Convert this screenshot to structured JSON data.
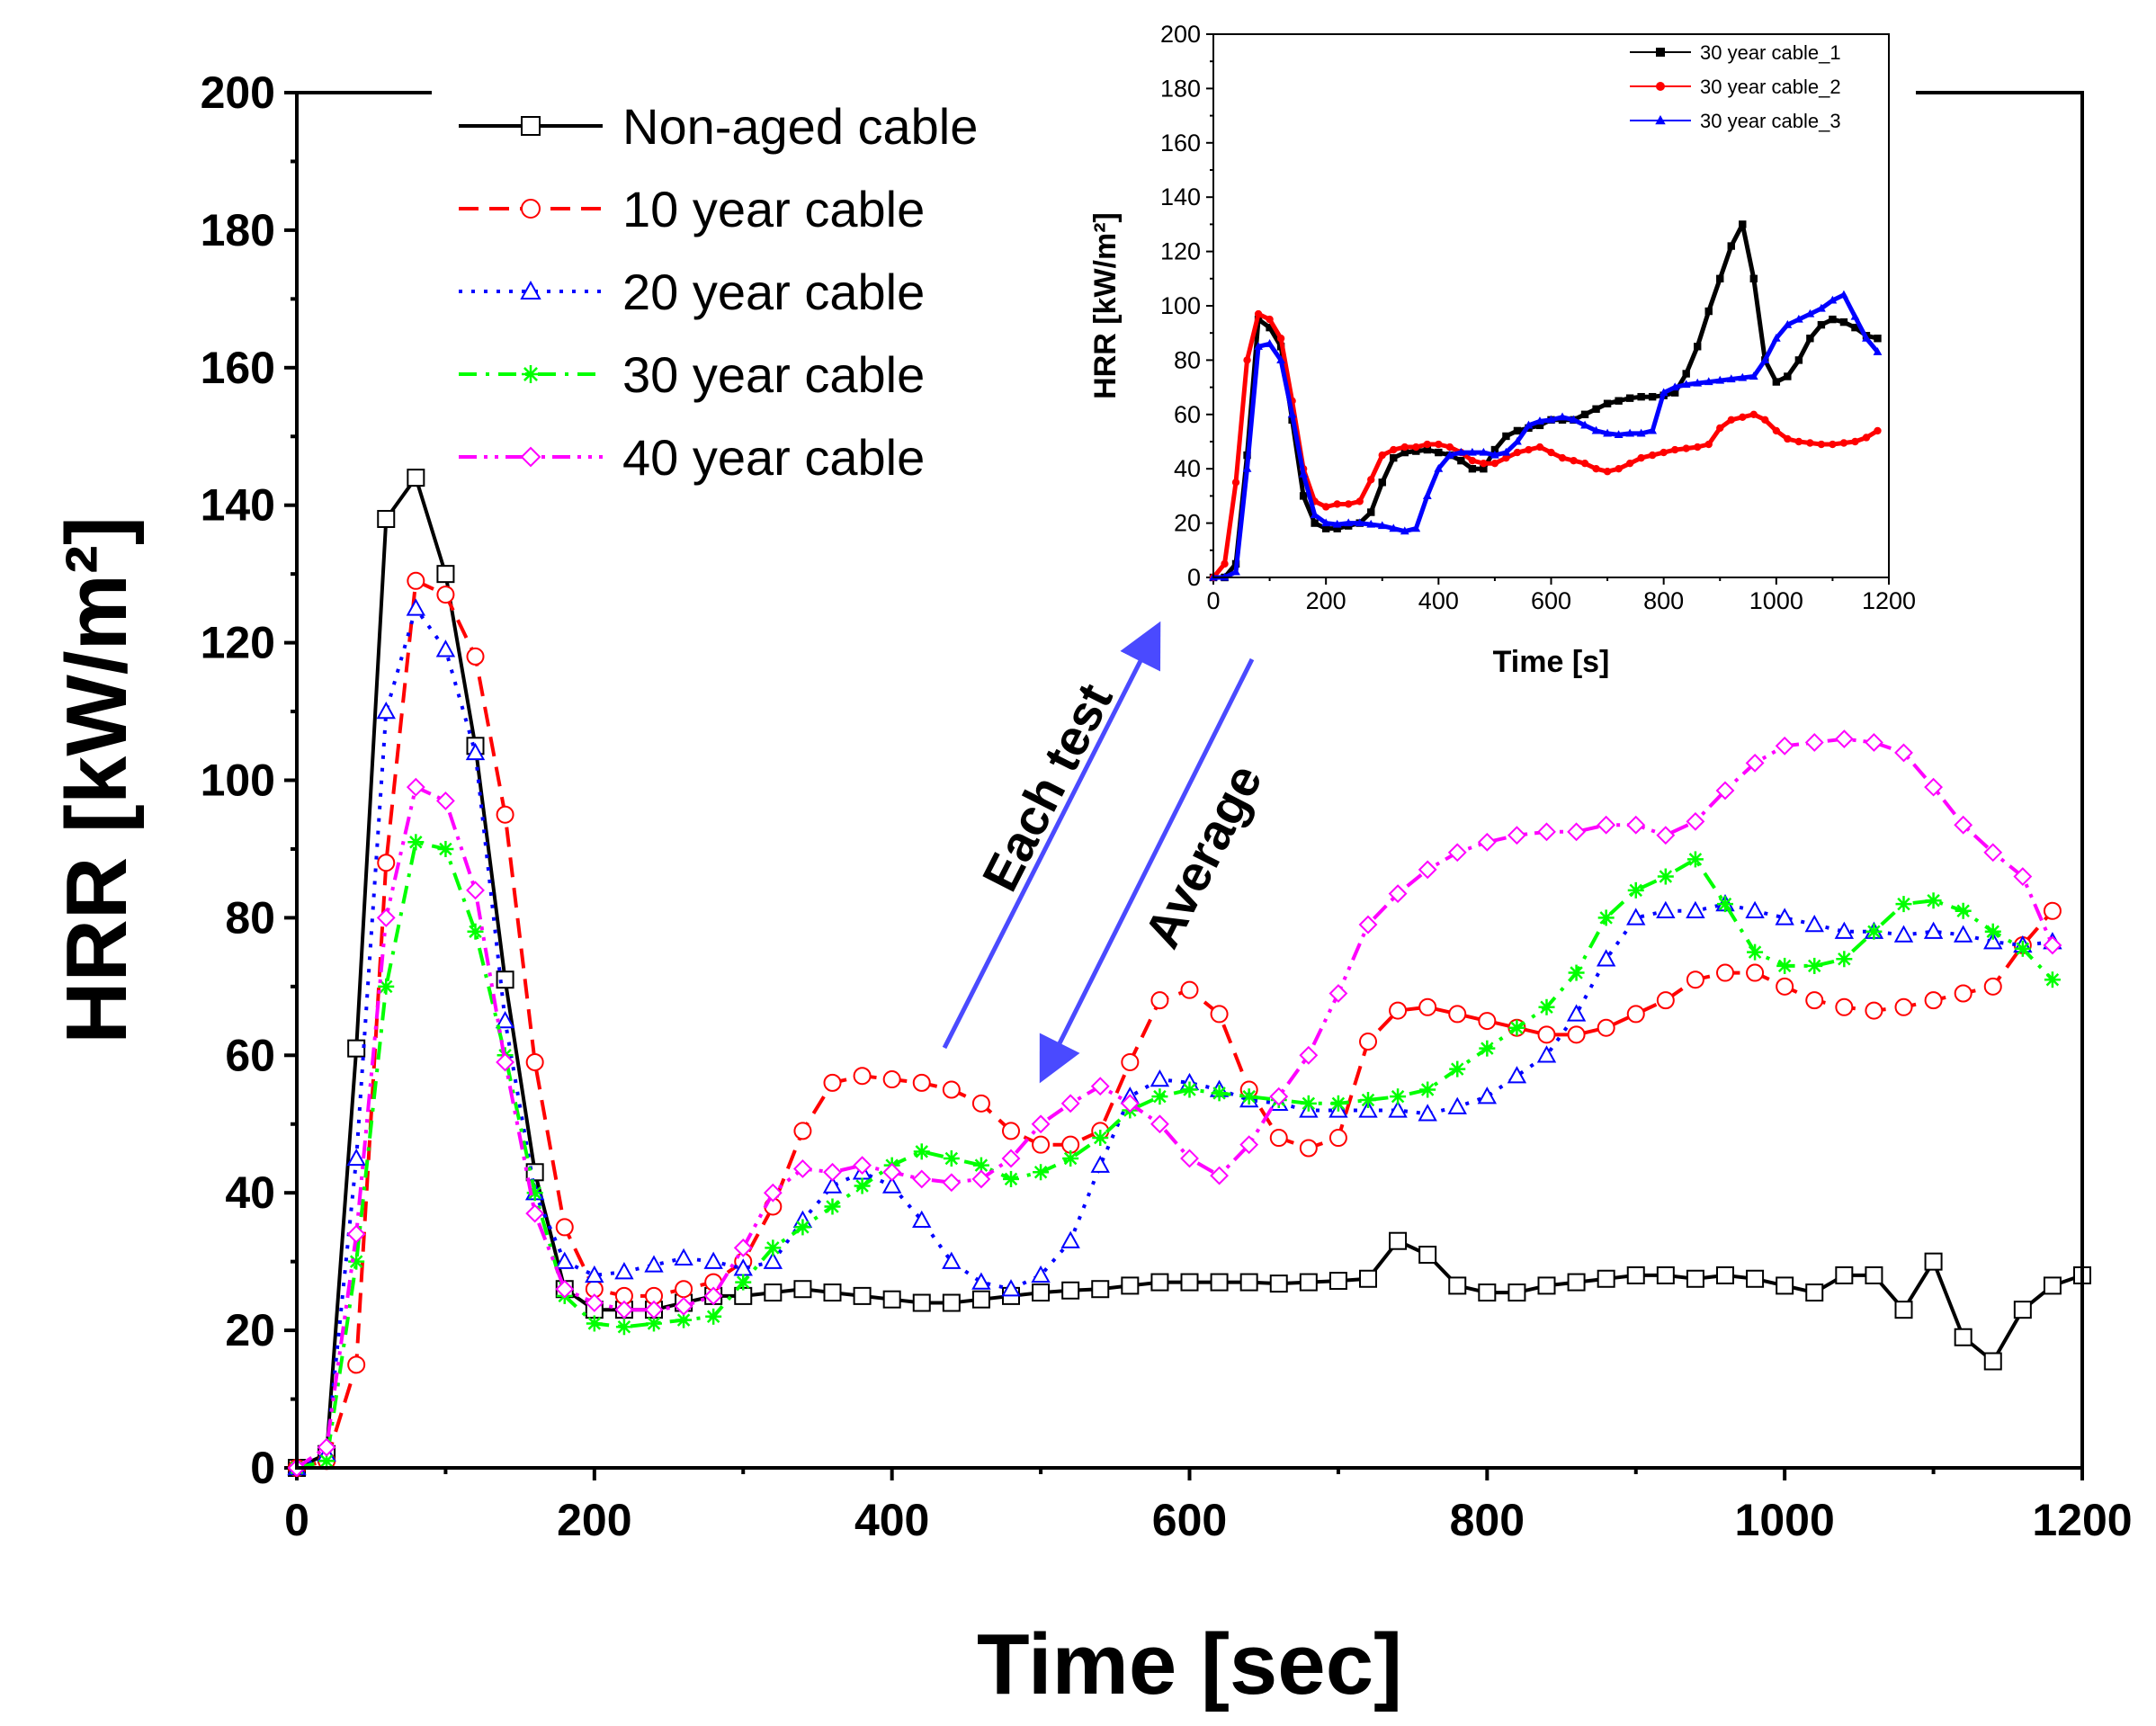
{
  "chart_data": [
    {
      "type": "line",
      "xlabel": "Time [sec]",
      "ylabel": "HRR [kW/m²]",
      "xlim": [
        0,
        1200
      ],
      "ylim": [
        0,
        200
      ],
      "xticks": [
        "0",
        "200",
        "400",
        "600",
        "800",
        "1000",
        "1200"
      ],
      "yticks": [
        "0",
        "20",
        "40",
        "60",
        "80",
        "100",
        "120",
        "140",
        "160",
        "180",
        "200"
      ],
      "legend_position": "top-left",
      "series": [
        {
          "name": "Non-aged cable",
          "color": "#000000",
          "marker": "square",
          "dash": "solid",
          "x": [
            0,
            20,
            40,
            60,
            80,
            100,
            120,
            140,
            160,
            180,
            200,
            220,
            240,
            260,
            280,
            300,
            320,
            340,
            360,
            380,
            400,
            420,
            440,
            460,
            480,
            500,
            520,
            540,
            560,
            580,
            600,
            620,
            640,
            660,
            680,
            700,
            720,
            740,
            760,
            780,
            800,
            820,
            840,
            860,
            880,
            900,
            920,
            940,
            960,
            980,
            1000,
            1020,
            1040,
            1060,
            1080,
            1100,
            1120,
            1140,
            1160,
            1180,
            1200
          ],
          "y": [
            0,
            2,
            61,
            138,
            144,
            130,
            105,
            71,
            43,
            26,
            23,
            23,
            23,
            24,
            25,
            25,
            25.5,
            26,
            25.5,
            25,
            24.5,
            24,
            24,
            24.5,
            25,
            25.5,
            25.8,
            26,
            26.5,
            27,
            27,
            27,
            27,
            26.8,
            27,
            27.2,
            27.5,
            33,
            31,
            26.5,
            25.5,
            25.5,
            26.5,
            27,
            27.5,
            28,
            28,
            27.5,
            28,
            27.5,
            26.5,
            25.5,
            28,
            28,
            23,
            30,
            19,
            15.5,
            23,
            26.5,
            28
          ]
        },
        {
          "name": "10 year cable",
          "color": "#ff0000",
          "marker": "circle",
          "dash": "dashed",
          "x": [
            0,
            20,
            40,
            60,
            80,
            100,
            120,
            140,
            160,
            180,
            200,
            220,
            240,
            260,
            280,
            300,
            320,
            340,
            360,
            380,
            400,
            420,
            440,
            460,
            480,
            500,
            520,
            540,
            560,
            580,
            600,
            620,
            640,
            660,
            680,
            700,
            720,
            740,
            760,
            780,
            800,
            820,
            840,
            860,
            880,
            900,
            920,
            940,
            960,
            980,
            1000,
            1020,
            1040,
            1060,
            1080,
            1100,
            1120,
            1140,
            1160,
            1180
          ],
          "y": [
            0,
            1,
            15,
            88,
            129,
            127,
            118,
            95,
            59,
            35,
            26,
            25,
            25,
            26,
            27,
            30,
            38,
            49,
            56,
            57,
            56.5,
            56,
            55,
            53,
            49,
            47,
            47,
            49,
            59,
            68,
            69.5,
            66,
            55,
            48,
            46.5,
            48,
            62,
            66.5,
            67,
            66,
            65,
            64,
            63,
            63,
            64,
            66,
            68,
            71,
            72,
            72,
            70,
            68,
            67,
            66.5,
            67,
            68,
            69,
            70,
            76,
            81
          ]
        },
        {
          "name": "20 year cable",
          "color": "#0000ff",
          "marker": "triangle",
          "dash": "dotted",
          "x": [
            0,
            20,
            40,
            60,
            80,
            100,
            120,
            140,
            160,
            180,
            200,
            220,
            240,
            260,
            280,
            300,
            320,
            340,
            360,
            380,
            400,
            420,
            440,
            460,
            480,
            500,
            520,
            540,
            560,
            580,
            600,
            620,
            640,
            660,
            680,
            700,
            720,
            740,
            760,
            780,
            800,
            820,
            840,
            860,
            880,
            900,
            920,
            940,
            960,
            980,
            1000,
            1020,
            1040,
            1060,
            1080,
            1100,
            1120,
            1140,
            1160,
            1180
          ],
          "y": [
            0,
            2,
            45,
            110,
            125,
            119,
            104,
            65,
            40,
            30,
            28,
            28.5,
            29.5,
            30.5,
            30,
            29,
            30,
            36,
            41,
            43,
            41,
            36,
            30,
            27,
            26,
            28,
            33,
            44,
            54,
            56.5,
            56,
            55,
            53.5,
            53,
            52,
            52,
            52,
            52,
            51.5,
            52.5,
            54,
            57,
            60,
            66,
            74,
            80,
            81,
            81,
            82,
            81,
            80,
            79,
            78,
            78,
            77.5,
            78,
            77.5,
            76.5,
            76,
            76.5
          ]
        },
        {
          "name": "30 year cable",
          "color": "#00ff00",
          "marker": "asterisk",
          "dash": "dashdot",
          "x": [
            0,
            20,
            40,
            60,
            80,
            100,
            120,
            140,
            160,
            180,
            200,
            220,
            240,
            260,
            280,
            300,
            320,
            340,
            360,
            380,
            400,
            420,
            440,
            460,
            480,
            500,
            520,
            540,
            560,
            580,
            600,
            620,
            640,
            660,
            680,
            700,
            720,
            740,
            760,
            780,
            800,
            820,
            840,
            860,
            880,
            900,
            920,
            940,
            960,
            980,
            1000,
            1020,
            1040,
            1060,
            1080,
            1100,
            1120,
            1140,
            1160,
            1180
          ],
          "y": [
            0,
            1,
            30,
            70,
            91,
            90,
            78,
            60,
            40,
            25,
            21,
            20.5,
            21,
            21.5,
            22,
            27,
            32,
            35,
            38,
            41,
            44,
            46,
            45,
            44,
            42,
            43,
            45,
            48,
            52,
            54,
            55,
            54.5,
            54,
            53.5,
            53,
            53,
            53.5,
            54,
            55,
            58,
            61,
            64,
            67,
            72,
            80,
            84,
            86,
            88.5,
            82,
            75,
            73,
            73,
            74,
            78,
            82,
            82.5,
            81,
            78,
            75.5,
            71
          ]
        },
        {
          "name": "40 year cable",
          "color": "#ff00ff",
          "marker": "diamond",
          "dash": "dashdotdot",
          "x": [
            0,
            20,
            40,
            60,
            80,
            100,
            120,
            140,
            160,
            180,
            200,
            220,
            240,
            260,
            280,
            300,
            320,
            340,
            360,
            380,
            400,
            420,
            440,
            460,
            480,
            500,
            520,
            540,
            560,
            580,
            600,
            620,
            640,
            660,
            680,
            700,
            720,
            740,
            760,
            780,
            800,
            820,
            840,
            860,
            880,
            900,
            920,
            940,
            960,
            980,
            1000,
            1020,
            1040,
            1060,
            1080,
            1100,
            1120,
            1140,
            1160,
            1180
          ],
          "y": [
            0,
            3,
            34,
            80,
            99,
            97,
            84,
            59,
            37,
            26,
            24,
            23,
            23,
            23.5,
            25,
            32,
            40,
            43.5,
            43,
            44,
            43,
            42,
            41.5,
            42,
            45,
            50,
            53,
            55.5,
            53,
            50,
            45,
            42.5,
            47,
            54,
            60,
            69,
            79,
            83.5,
            87,
            89.5,
            91,
            92,
            92.5,
            92.5,
            93.5,
            93.5,
            92,
            94,
            98.5,
            102.5,
            105,
            105.5,
            106,
            105.5,
            104,
            99,
            93.5,
            89.5,
            86,
            76
          ]
        }
      ]
    },
    {
      "type": "line",
      "title": "",
      "xlabel": "Time [s]",
      "ylabel": "HRR [kW/m²]",
      "xlim": [
        0,
        1200
      ],
      "ylim": [
        0,
        200
      ],
      "xticks": [
        "0",
        "200",
        "400",
        "600",
        "800",
        "1000",
        "1200"
      ],
      "yticks": [
        "0",
        "20",
        "40",
        "60",
        "80",
        "100",
        "120",
        "140",
        "160",
        "180",
        "200"
      ],
      "legend_position": "top-right",
      "series": [
        {
          "name": "30 year cable_1",
          "color": "#000000",
          "marker": "square",
          "x": [
            0,
            20,
            40,
            60,
            80,
            100,
            120,
            140,
            160,
            180,
            200,
            220,
            240,
            260,
            280,
            300,
            320,
            340,
            360,
            380,
            400,
            420,
            440,
            460,
            480,
            500,
            520,
            540,
            560,
            580,
            600,
            620,
            640,
            660,
            680,
            700,
            720,
            740,
            760,
            780,
            800,
            820,
            840,
            860,
            880,
            900,
            920,
            940,
            960,
            980,
            1000,
            1020,
            1040,
            1060,
            1080,
            1100,
            1120,
            1140,
            1160,
            1180
          ],
          "y": [
            0,
            0,
            5,
            45,
            95,
            92,
            85,
            58,
            30,
            20,
            18,
            18,
            19,
            20,
            24,
            35,
            44,
            46,
            46.5,
            47,
            46,
            45,
            43,
            40,
            40,
            47,
            52,
            54,
            55,
            56,
            58,
            58,
            58,
            60,
            62,
            64,
            65,
            66,
            66.5,
            66.5,
            67,
            68,
            75,
            85,
            98,
            110,
            122,
            130,
            110,
            80,
            72,
            74,
            80,
            88,
            93,
            95,
            94,
            92,
            89,
            88
          ]
        },
        {
          "name": "30 year cable_2",
          "color": "#ff0000",
          "marker": "circle",
          "x": [
            0,
            20,
            40,
            60,
            80,
            100,
            120,
            140,
            160,
            180,
            200,
            220,
            240,
            260,
            280,
            300,
            320,
            340,
            360,
            380,
            400,
            420,
            440,
            460,
            480,
            500,
            520,
            540,
            560,
            580,
            600,
            620,
            640,
            660,
            680,
            700,
            720,
            740,
            760,
            780,
            800,
            820,
            840,
            860,
            880,
            900,
            920,
            940,
            960,
            980,
            1000,
            1020,
            1040,
            1060,
            1080,
            1100,
            1120,
            1140,
            1160,
            1180
          ],
          "y": [
            0,
            5,
            35,
            80,
            97,
            95,
            88,
            65,
            40,
            28,
            26,
            27,
            27,
            28,
            36,
            45,
            47,
            48,
            48,
            49,
            49,
            48,
            46,
            43,
            42,
            42,
            44,
            46,
            47,
            48,
            46,
            44,
            43,
            42,
            40,
            39,
            40,
            42,
            44,
            45,
            46,
            47,
            47.5,
            48,
            49,
            55,
            58,
            59,
            60,
            58,
            54,
            51,
            50,
            49.5,
            49,
            49,
            49.5,
            50,
            51.5,
            54
          ]
        },
        {
          "name": "30 year cable_3",
          "color": "#0000ff",
          "marker": "triangle",
          "x": [
            0,
            20,
            40,
            60,
            80,
            100,
            120,
            140,
            160,
            180,
            200,
            220,
            240,
            260,
            280,
            300,
            320,
            340,
            360,
            380,
            400,
            420,
            440,
            460,
            480,
            500,
            520,
            540,
            560,
            580,
            600,
            620,
            640,
            660,
            680,
            700,
            720,
            740,
            760,
            780,
            800,
            820,
            840,
            860,
            880,
            900,
            920,
            940,
            960,
            980,
            1000,
            1020,
            1040,
            1060,
            1080,
            1100,
            1120,
            1140,
            1160,
            1180
          ],
          "y": [
            0,
            0,
            2,
            40,
            85,
            86,
            80,
            60,
            38,
            23,
            20,
            19.5,
            20,
            20,
            19.5,
            19,
            18,
            17,
            18,
            30,
            40,
            45,
            46,
            46,
            46,
            45,
            46,
            50,
            56,
            57.5,
            58,
            59,
            58,
            56,
            54,
            53,
            52.5,
            53,
            53,
            54,
            68,
            70,
            71,
            71.5,
            72,
            72.5,
            73,
            73.5,
            74,
            80,
            88,
            93,
            95,
            97,
            99,
            102,
            104,
            96,
            88,
            83
          ]
        }
      ]
    }
  ],
  "annotations": {
    "each_test": "Each test",
    "average": "Average"
  }
}
